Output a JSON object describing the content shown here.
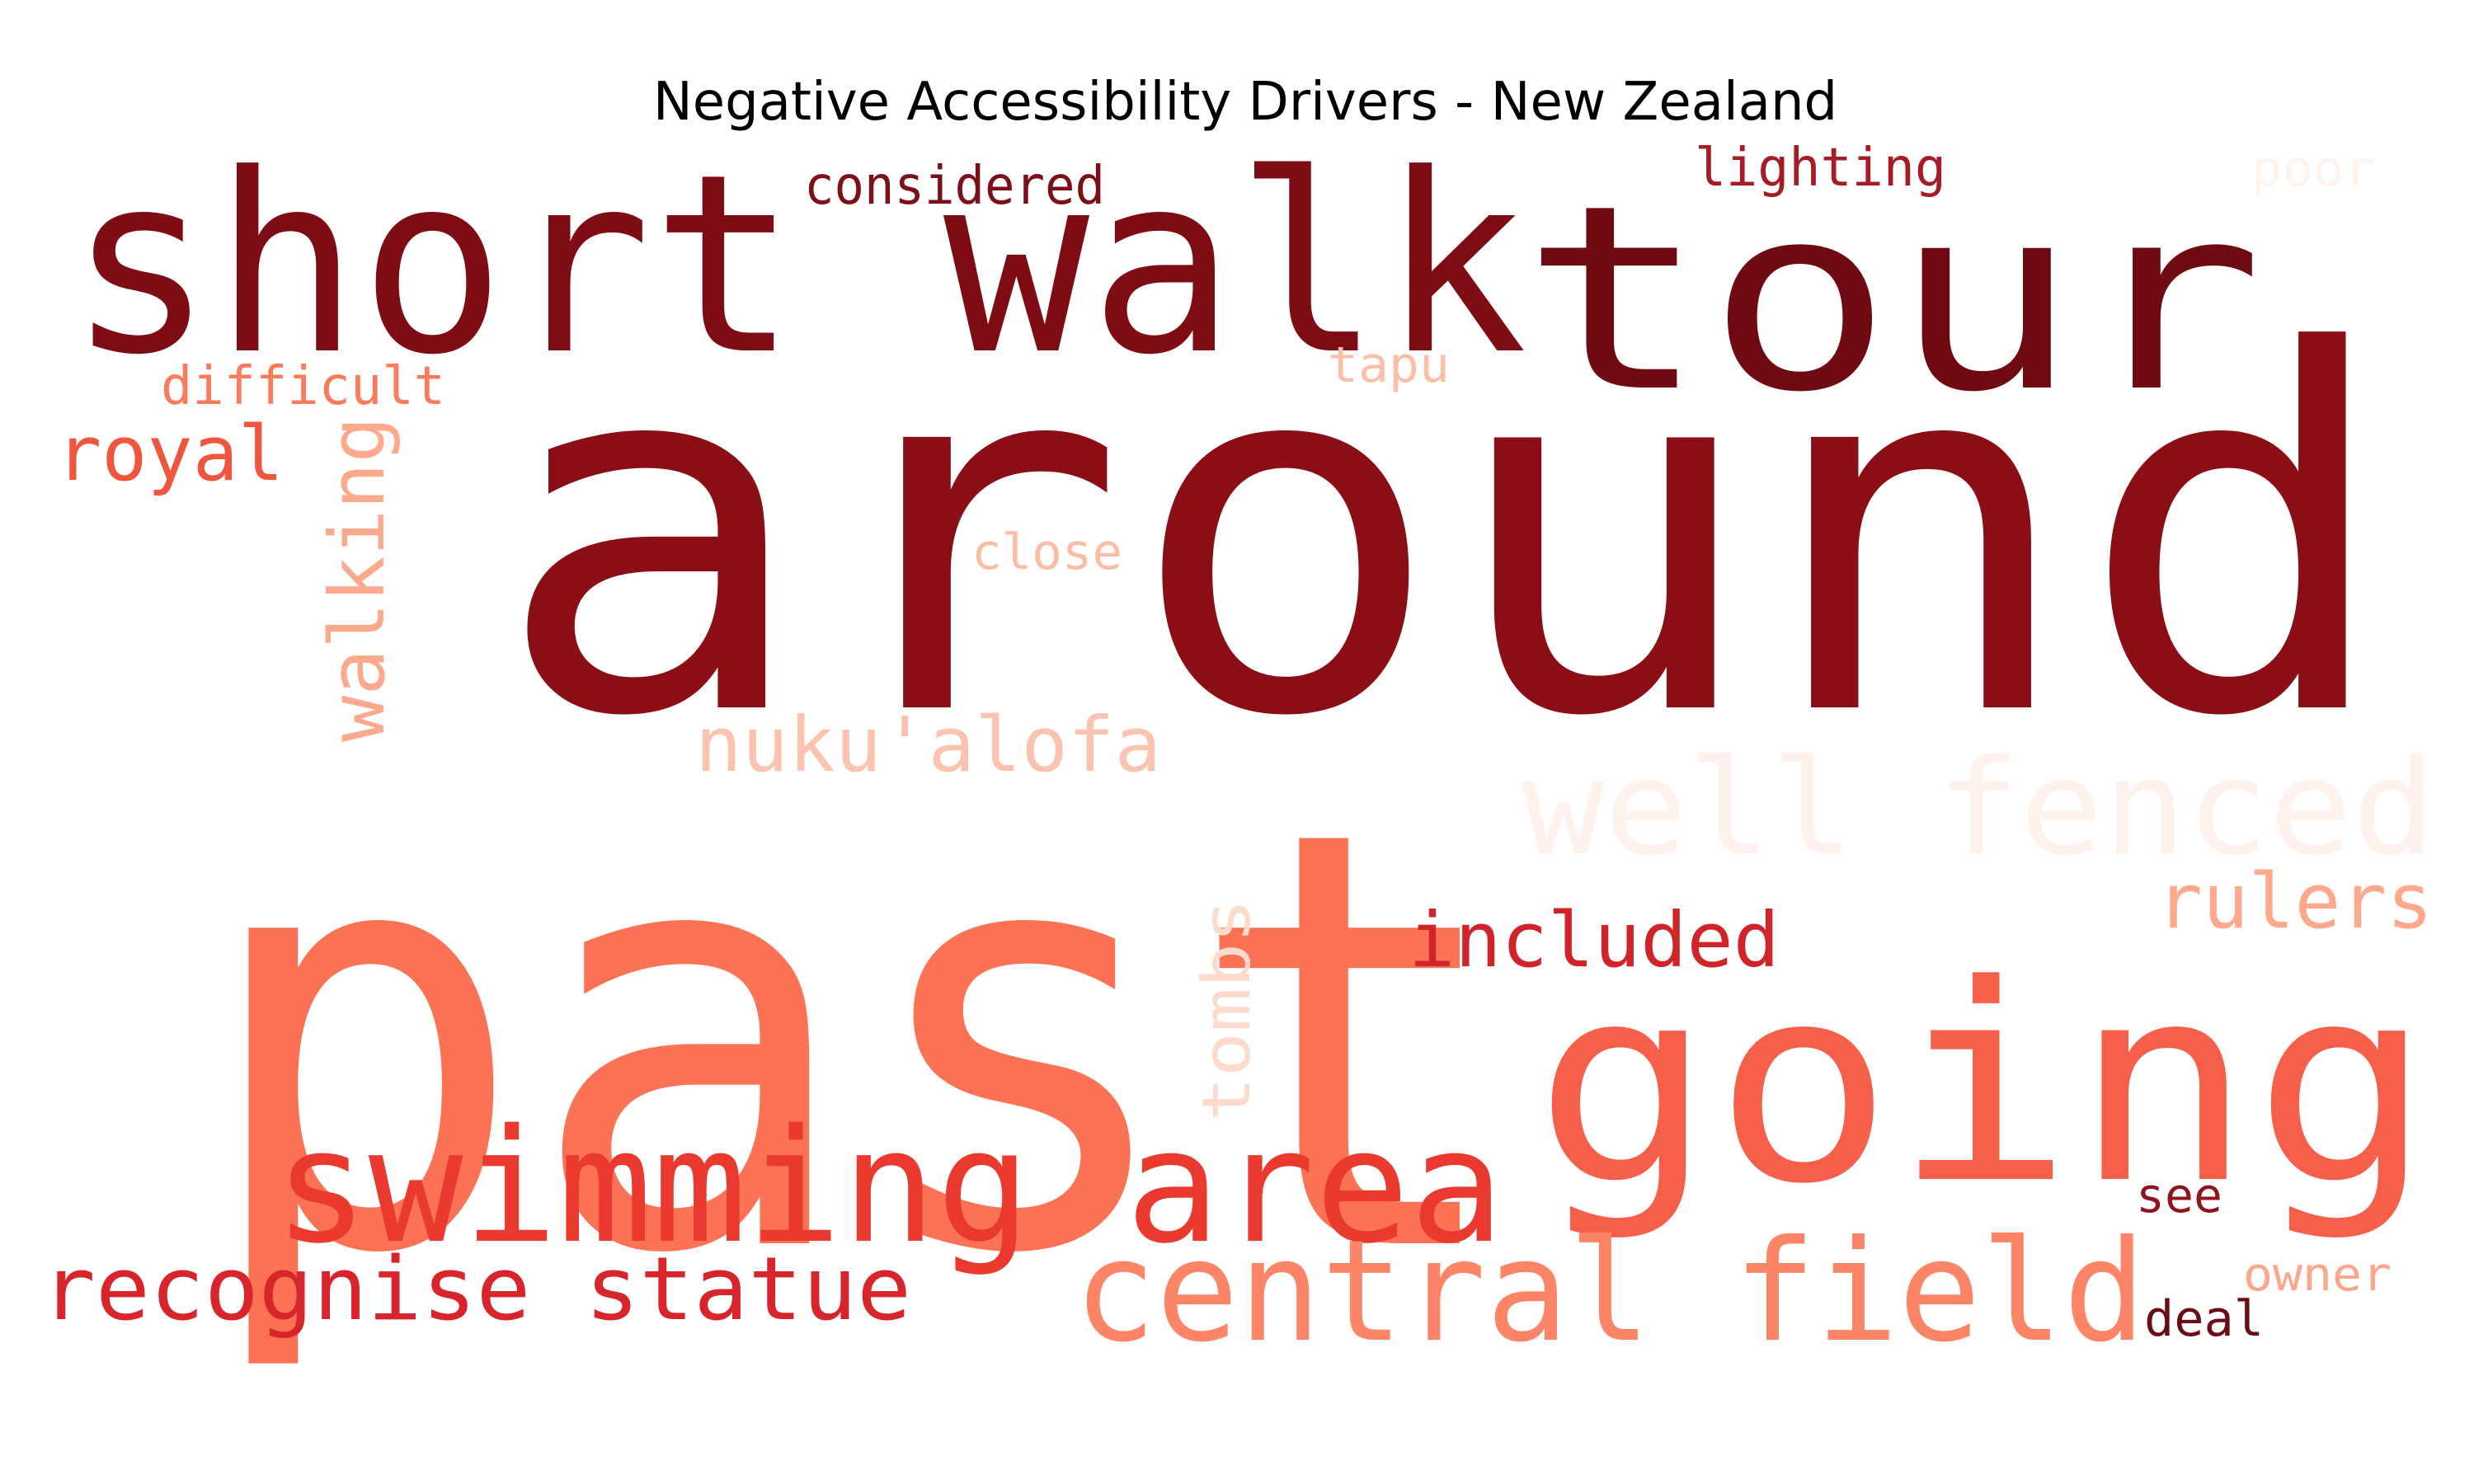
{
  "chart_data": {
    "type": "wordcloud",
    "title": "Negative Accessibility Drivers - New Zealand",
    "words": [
      {
        "text": "around",
        "color": "#8b0e16"
      },
      {
        "text": "past",
        "color": "#fb7354"
      },
      {
        "text": "short walk",
        "color": "#7f0b15"
      },
      {
        "text": "tour",
        "color": "#6f0a12"
      },
      {
        "text": "going",
        "color": "#f6604a"
      },
      {
        "text": "swimming area",
        "color": "#ea3a30"
      },
      {
        "text": "central field",
        "color": "#fc8567"
      },
      {
        "text": "well fenced",
        "color": "#fff1eb"
      },
      {
        "text": "recognise statue",
        "color": "#d8252b"
      },
      {
        "text": "nuku'alofa",
        "color": "#fcc4b0"
      },
      {
        "text": "included",
        "color": "#d0232a"
      },
      {
        "text": "rulers",
        "color": "#fca98e"
      },
      {
        "text": "walking",
        "color": "#fca98e"
      },
      {
        "text": "tombs",
        "color": "#fddbcc"
      },
      {
        "text": "royal",
        "color": "#f0553e"
      },
      {
        "text": "difficult",
        "color": "#fb7b5c"
      },
      {
        "text": "considered",
        "color": "#7c1018"
      },
      {
        "text": "lighting",
        "color": "#a61c25"
      },
      {
        "text": "poor",
        "color": "#fff3ee"
      },
      {
        "text": "tapu",
        "color": "#fcbfa7"
      },
      {
        "text": "close",
        "color": "#fcbda5"
      },
      {
        "text": "see",
        "color": "#8e1520"
      },
      {
        "text": "owner",
        "color": "#fca78c"
      },
      {
        "text": "deal",
        "color": "#6b0d14"
      }
    ]
  }
}
